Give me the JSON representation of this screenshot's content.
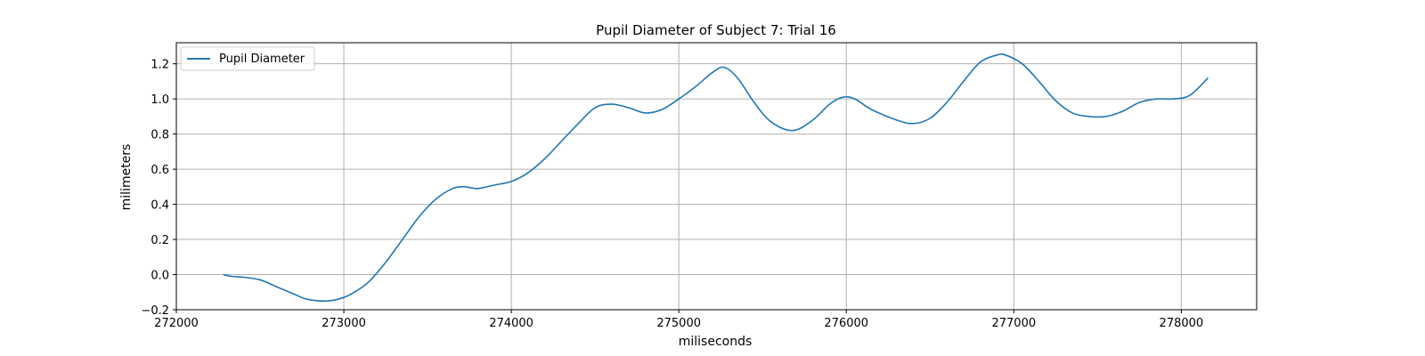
{
  "chart_data": {
    "type": "line",
    "title": "Pupil Diameter of Subject 7: Trial 16",
    "xlabel": "miliseconds",
    "ylabel": "milimeters",
    "xlim": [
      272000,
      278450
    ],
    "ylim": [
      -0.2,
      1.32
    ],
    "xticks": [
      272000,
      273000,
      274000,
      275000,
      276000,
      277000,
      278000
    ],
    "yticks": [
      -0.2,
      0.0,
      0.2,
      0.4,
      0.6,
      0.8,
      1.0,
      1.2
    ],
    "grid": true,
    "legend_position": "upper-left",
    "series": [
      {
        "name": "Pupil Diameter",
        "color": "#1f77b4",
        "x": [
          272280,
          272330,
          272400,
          272500,
          272600,
          272700,
          272780,
          272900,
          273000,
          273080,
          273150,
          273250,
          273350,
          273450,
          273550,
          273650,
          273720,
          273800,
          273900,
          274000,
          274100,
          274200,
          274300,
          274400,
          274500,
          274600,
          274700,
          274800,
          274900,
          275000,
          275100,
          275200,
          275270,
          275350,
          275450,
          275550,
          275680,
          275800,
          275900,
          275980,
          276050,
          276150,
          276300,
          276400,
          276500,
          276600,
          276700,
          276800,
          276900,
          276950,
          277050,
          277150,
          277250,
          277350,
          277450,
          277550,
          277650,
          277750,
          277850,
          277950,
          278050,
          278160
        ],
        "y": [
          0.0,
          -0.01,
          -0.015,
          -0.03,
          -0.07,
          -0.11,
          -0.14,
          -0.15,
          -0.13,
          -0.09,
          -0.04,
          0.07,
          0.2,
          0.33,
          0.43,
          0.49,
          0.5,
          0.49,
          0.51,
          0.53,
          0.58,
          0.66,
          0.76,
          0.86,
          0.95,
          0.97,
          0.95,
          0.92,
          0.94,
          1.0,
          1.07,
          1.15,
          1.18,
          1.12,
          0.98,
          0.87,
          0.82,
          0.88,
          0.97,
          1.01,
          1.0,
          0.94,
          0.88,
          0.86,
          0.89,
          0.98,
          1.1,
          1.21,
          1.25,
          1.25,
          1.2,
          1.1,
          0.99,
          0.92,
          0.9,
          0.9,
          0.93,
          0.98,
          1.0,
          1.0,
          1.02,
          1.12
        ]
      }
    ]
  }
}
